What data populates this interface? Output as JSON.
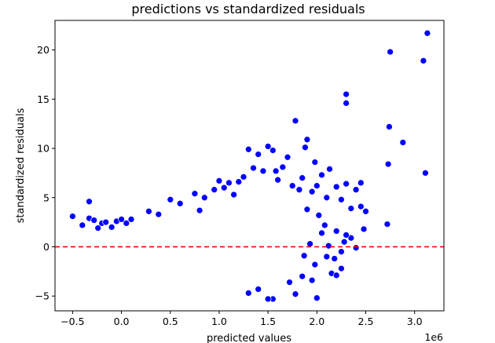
{
  "chart_data": {
    "type": "scatter",
    "title": "predictions vs standardized residuals",
    "xlabel": "predicted values",
    "ylabel": "standardized residuals",
    "x_offset_label": "1e6",
    "xlim": [
      -0.68,
      3.3
    ],
    "ylim": [
      -6.5,
      23.0
    ],
    "x_ticks": [
      -0.5,
      0.0,
      0.5,
      1.0,
      1.5,
      2.0,
      2.5,
      3.0
    ],
    "x_tick_labels": [
      "−0.5",
      "0.0",
      "0.5",
      "1.0",
      "1.5",
      "2.0",
      "2.5",
      "3.0"
    ],
    "y_ticks": [
      -5,
      0,
      5,
      10,
      15,
      20
    ],
    "y_tick_labels": [
      "−5",
      "0",
      "5",
      "10",
      "15",
      "20"
    ],
    "reference_line": {
      "y": 0,
      "style": "dashed",
      "color": "#ff0000"
    },
    "marker_color": "#0000ff",
    "grid": false,
    "points": [
      {
        "x": -0.5,
        "y": 3.1
      },
      {
        "x": -0.4,
        "y": 2.2
      },
      {
        "x": -0.33,
        "y": 4.6
      },
      {
        "x": -0.33,
        "y": 2.9
      },
      {
        "x": -0.28,
        "y": 2.7
      },
      {
        "x": -0.24,
        "y": 1.9
      },
      {
        "x": -0.2,
        "y": 2.4
      },
      {
        "x": -0.16,
        "y": 2.5
      },
      {
        "x": -0.1,
        "y": 2.0
      },
      {
        "x": -0.05,
        "y": 2.6
      },
      {
        "x": 0.0,
        "y": 2.8
      },
      {
        "x": 0.05,
        "y": 2.4
      },
      {
        "x": 0.1,
        "y": 2.8
      },
      {
        "x": 0.28,
        "y": 3.6
      },
      {
        "x": 0.38,
        "y": 3.3
      },
      {
        "x": 0.5,
        "y": 4.8
      },
      {
        "x": 0.6,
        "y": 4.4
      },
      {
        "x": 0.75,
        "y": 5.4
      },
      {
        "x": 0.8,
        "y": 3.7
      },
      {
        "x": 0.85,
        "y": 5.0
      },
      {
        "x": 0.95,
        "y": 5.8
      },
      {
        "x": 1.0,
        "y": 6.7
      },
      {
        "x": 1.05,
        "y": 6.0
      },
      {
        "x": 1.1,
        "y": 6.5
      },
      {
        "x": 1.15,
        "y": 5.3
      },
      {
        "x": 1.2,
        "y": 6.6
      },
      {
        "x": 1.25,
        "y": 7.1
      },
      {
        "x": 1.3,
        "y": 9.9
      },
      {
        "x": 1.35,
        "y": 8.0
      },
      {
        "x": 1.4,
        "y": 9.4
      },
      {
        "x": 1.45,
        "y": 7.7
      },
      {
        "x": 1.5,
        "y": 10.2
      },
      {
        "x": 1.55,
        "y": 9.8
      },
      {
        "x": 1.58,
        "y": 7.7
      },
      {
        "x": 1.6,
        "y": 6.8
      },
      {
        "x": 1.65,
        "y": 8.1
      },
      {
        "x": 1.7,
        "y": 9.1
      },
      {
        "x": 1.75,
        "y": 6.2
      },
      {
        "x": 1.78,
        "y": 12.8
      },
      {
        "x": 1.82,
        "y": 5.8
      },
      {
        "x": 1.85,
        "y": 7.0
      },
      {
        "x": 1.88,
        "y": 10.1
      },
      {
        "x": 1.9,
        "y": 10.9
      },
      {
        "x": 1.95,
        "y": 5.6
      },
      {
        "x": 1.98,
        "y": 8.6
      },
      {
        "x": 2.0,
        "y": 6.2
      },
      {
        "x": 2.05,
        "y": 7.3
      },
      {
        "x": 2.1,
        "y": 5.0
      },
      {
        "x": 2.13,
        "y": 7.9
      },
      {
        "x": 2.2,
        "y": 6.1
      },
      {
        "x": 2.25,
        "y": 4.8
      },
      {
        "x": 2.3,
        "y": 15.5
      },
      {
        "x": 2.3,
        "y": 14.6
      },
      {
        "x": 2.3,
        "y": 6.4
      },
      {
        "x": 2.35,
        "y": 3.9
      },
      {
        "x": 2.4,
        "y": 5.8
      },
      {
        "x": 2.45,
        "y": 6.5
      },
      {
        "x": 2.5,
        "y": 3.6
      },
      {
        "x": 2.45,
        "y": 4.1
      },
      {
        "x": 2.73,
        "y": 8.4
      },
      {
        "x": 2.74,
        "y": 12.2
      },
      {
        "x": 2.75,
        "y": 19.8
      },
      {
        "x": 2.88,
        "y": 10.6
      },
      {
        "x": 3.09,
        "y": 18.9
      },
      {
        "x": 3.11,
        "y": 7.5
      },
      {
        "x": 3.13,
        "y": 21.7
      },
      {
        "x": 2.72,
        "y": 2.3
      },
      {
        "x": 2.48,
        "y": 1.8
      },
      {
        "x": 2.35,
        "y": 0.9
      },
      {
        "x": 2.2,
        "y": 1.6
      },
      {
        "x": 2.25,
        "y": -0.5
      },
      {
        "x": 2.18,
        "y": -1.2
      },
      {
        "x": 2.15,
        "y": -2.7
      },
      {
        "x": 2.2,
        "y": -2.9
      },
      {
        "x": 2.25,
        "y": -2.2
      },
      {
        "x": 2.0,
        "y": -5.2
      },
      {
        "x": 1.95,
        "y": -3.4
      },
      {
        "x": 1.78,
        "y": -4.8
      },
      {
        "x": 1.85,
        "y": -3.0
      },
      {
        "x": 1.72,
        "y": -3.6
      },
      {
        "x": 1.55,
        "y": -5.3
      },
      {
        "x": 1.5,
        "y": -5.3
      },
      {
        "x": 1.4,
        "y": -4.3
      },
      {
        "x": 1.3,
        "y": -4.7
      },
      {
        "x": 2.05,
        "y": 1.4
      },
      {
        "x": 2.1,
        "y": -1.0
      },
      {
        "x": 1.98,
        "y": -1.8
      },
      {
        "x": 2.3,
        "y": 1.2
      },
      {
        "x": 1.9,
        "y": 3.8
      },
      {
        "x": 2.02,
        "y": 3.2
      },
      {
        "x": 2.08,
        "y": 2.2
      },
      {
        "x": 1.93,
        "y": 0.3
      },
      {
        "x": 1.87,
        "y": -0.9
      },
      {
        "x": 2.4,
        "y": -0.1
      },
      {
        "x": 2.28,
        "y": 0.5
      },
      {
        "x": 2.12,
        "y": 0.1
      }
    ]
  }
}
